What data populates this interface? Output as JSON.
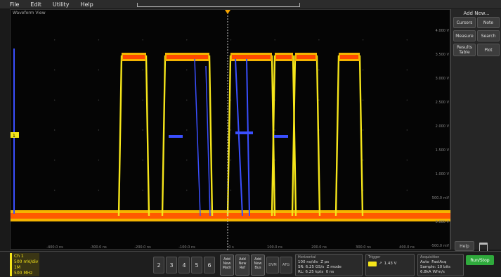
{
  "menu": [
    "File",
    "Edit",
    "Utility",
    "Help"
  ],
  "waveform_view": {
    "title": "Waveform View",
    "channel_marker": "1"
  },
  "y_ticks": [
    "4.000 V",
    "3.500 V",
    "3.000 V",
    "2.500 V",
    "2.000 V",
    "1.500 V",
    "1.000 V",
    "500.0 mV",
    "0.000 V",
    "-500.0 mV"
  ],
  "x_ticks": [
    "-400.0 ns",
    "-300.0 ns",
    "-200.0 ns",
    "-100.0 ns",
    "0 s",
    "100.0 ns",
    "200.0 ns",
    "300.0 ns",
    "400.0 ns"
  ],
  "right_panel": {
    "title": "Add New...",
    "buttons": [
      "Cursors",
      "Note",
      "Measure",
      "Search",
      "Results Table",
      "Plot"
    ],
    "help": "Help"
  },
  "channel1": {
    "name": "Ch 1",
    "scale": "500 mV/div",
    "coupling": "1M",
    "bandwidth": "500 MHz"
  },
  "channels": [
    "2",
    "3",
    "4",
    "5",
    "6"
  ],
  "add_buttons": [
    [
      "Add",
      "New",
      "Math"
    ],
    [
      "Add",
      "New",
      "Ref"
    ],
    [
      "Add",
      "New",
      "Bus"
    ]
  ],
  "small_buttons": [
    "DVM",
    "AFG"
  ],
  "horizontal": {
    "title": "Horizontal",
    "line1a": "100 ns/div",
    "line1b": "Z ps",
    "line2a": "SR: 6.25 GS/s",
    "line2b": "Z mode",
    "line3a": "RL: 6.25 kpts",
    "line3b": "0 ns"
  },
  "trigger": {
    "title": "Trigger",
    "value": "1.43 V"
  },
  "acquisition": {
    "title": "Acquisition",
    "line1a": "Auto",
    "line1b": "FastAcq",
    "line2": "Sample: 10 bits",
    "line3": "6.8kA Wfm/s"
  },
  "run_label": "Run/Stop"
}
